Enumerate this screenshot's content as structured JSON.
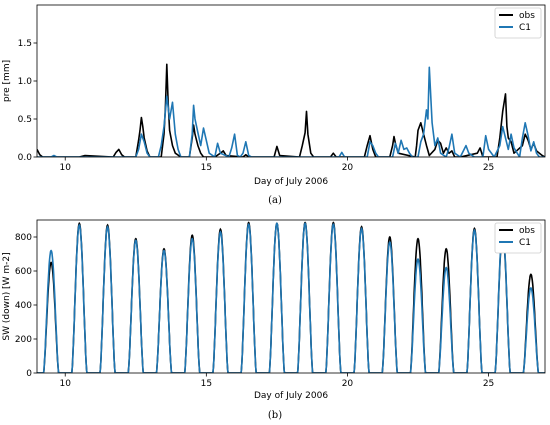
{
  "colors": {
    "obs": "#000000",
    "C1": "#1f77b4"
  },
  "chart_data": [
    {
      "id": "a",
      "type": "line",
      "caption": "(a)",
      "title": "",
      "xlabel": "Day of July 2006",
      "ylabel": "pre [mm]",
      "xlim": [
        9.0,
        27.0
      ],
      "ylim": [
        0.0,
        2.0
      ],
      "xticks": [
        10,
        15,
        20,
        25
      ],
      "xtick_labels": [
        "10",
        "15",
        "20",
        "25"
      ],
      "yticks": [
        0.0,
        0.5,
        1.0,
        1.5
      ],
      "ytick_labels": [
        "0.0",
        "0.5",
        "1.0",
        "1.5"
      ],
      "grid": false,
      "legend_position": "top-right",
      "legend": [
        "obs",
        "C1"
      ],
      "series": [
        {
          "name": "obs",
          "color": "#000000",
          "x": [
            9.0,
            9.1,
            9.2,
            9.3,
            10.5,
            10.7,
            11.7,
            11.8,
            11.9,
            12.0,
            12.1,
            12.5,
            12.6,
            12.65,
            12.7,
            12.75,
            12.8,
            12.9,
            13.0,
            13.4,
            13.5,
            13.55,
            13.6,
            13.65,
            13.7,
            13.8,
            13.9,
            14.1,
            14.4,
            14.5,
            14.55,
            14.6,
            14.7,
            14.8,
            14.9,
            15.0,
            15.3,
            15.5,
            15.6,
            15.7,
            16.3,
            16.4,
            16.5,
            17.4,
            17.5,
            17.6,
            18.3,
            18.4,
            18.5,
            18.55,
            18.6,
            18.7,
            18.8,
            19.4,
            19.5,
            19.6,
            20.6,
            20.7,
            20.8,
            20.9,
            21.0,
            21.5,
            21.6,
            21.65,
            21.7,
            21.8,
            22.4,
            22.45,
            22.5,
            22.6,
            22.7,
            22.8,
            22.9,
            23.1,
            23.2,
            23.3,
            23.4,
            23.5,
            23.6,
            23.7,
            23.8,
            24.0,
            24.6,
            24.7,
            24.8,
            25.3,
            25.4,
            25.5,
            25.6,
            25.65,
            25.7,
            25.8,
            25.9,
            26.2,
            26.3,
            26.4,
            26.5,
            26.6,
            26.7,
            26.8,
            26.9,
            27.0
          ],
          "y": [
            0.1,
            0.03,
            0.0,
            0.0,
            0.0,
            0.02,
            0.0,
            0.06,
            0.1,
            0.03,
            0.0,
            0.0,
            0.22,
            0.35,
            0.52,
            0.4,
            0.25,
            0.08,
            0.0,
            0.0,
            0.3,
            0.65,
            1.22,
            0.7,
            0.35,
            0.15,
            0.05,
            0.0,
            0.0,
            0.25,
            0.42,
            0.3,
            0.15,
            0.05,
            0.0,
            0.0,
            0.0,
            0.05,
            0.08,
            0.02,
            0.0,
            0.03,
            0.0,
            0.0,
            0.14,
            0.02,
            0.0,
            0.15,
            0.32,
            0.6,
            0.3,
            0.05,
            0.0,
            0.0,
            0.05,
            0.0,
            0.0,
            0.15,
            0.28,
            0.1,
            0.0,
            0.0,
            0.15,
            0.27,
            0.18,
            0.05,
            0.0,
            0.15,
            0.35,
            0.45,
            0.3,
            0.15,
            0.02,
            0.1,
            0.22,
            0.18,
            0.05,
            0.12,
            0.05,
            0.08,
            0.0,
            0.0,
            0.05,
            0.12,
            0.0,
            0.0,
            0.25,
            0.6,
            0.83,
            0.4,
            0.25,
            0.2,
            0.05,
            0.15,
            0.3,
            0.22,
            0.1,
            0.18,
            0.08,
            0.05,
            0.02,
            0.0
          ]
        },
        {
          "name": "C1",
          "color": "#1f77b4",
          "x": [
            9.0,
            9.5,
            9.6,
            9.7,
            9.8,
            12.5,
            12.6,
            12.7,
            12.8,
            12.9,
            13.0,
            13.3,
            13.4,
            13.5,
            13.6,
            13.65,
            13.7,
            13.8,
            13.9,
            14.0,
            14.1,
            14.4,
            14.5,
            14.55,
            14.6,
            14.7,
            14.8,
            14.9,
            15.0,
            15.1,
            15.3,
            15.4,
            15.5,
            15.8,
            15.9,
            16.0,
            16.1,
            16.2,
            16.3,
            16.4,
            16.5,
            16.6,
            19.7,
            19.8,
            19.9,
            20.7,
            20.8,
            20.9,
            21.0,
            21.1,
            21.6,
            21.7,
            21.8,
            21.9,
            22.0,
            22.1,
            22.2,
            22.3,
            22.5,
            22.6,
            22.7,
            22.8,
            22.85,
            22.9,
            23.0,
            23.1,
            23.2,
            23.3,
            23.5,
            23.6,
            23.7,
            23.8,
            24.0,
            24.2,
            24.3,
            24.5,
            24.8,
            24.9,
            25.0,
            25.2,
            25.4,
            25.5,
            25.6,
            25.7,
            25.8,
            25.9,
            26.1,
            26.2,
            26.3,
            26.4,
            26.5,
            26.6,
            26.7,
            26.8,
            27.0
          ],
          "y": [
            0.0,
            0.0,
            0.02,
            0.0,
            0.0,
            0.0,
            0.1,
            0.3,
            0.2,
            0.05,
            0.0,
            0.0,
            0.15,
            0.4,
            0.8,
            0.65,
            0.5,
            0.72,
            0.3,
            0.1,
            0.0,
            0.0,
            0.3,
            0.68,
            0.5,
            0.32,
            0.15,
            0.38,
            0.22,
            0.05,
            0.0,
            0.18,
            0.05,
            0.0,
            0.12,
            0.3,
            0.02,
            0.0,
            0.05,
            0.2,
            0.02,
            0.0,
            0.0,
            0.06,
            0.0,
            0.0,
            0.2,
            0.15,
            0.05,
            0.0,
            0.0,
            0.18,
            0.05,
            0.22,
            0.1,
            0.12,
            0.05,
            0.0,
            0.0,
            0.2,
            0.3,
            0.62,
            0.5,
            1.18,
            0.45,
            0.15,
            0.25,
            0.05,
            0.0,
            0.12,
            0.3,
            0.05,
            0.0,
            0.15,
            0.05,
            0.0,
            0.0,
            0.28,
            0.1,
            0.0,
            0.15,
            0.4,
            0.25,
            0.1,
            0.3,
            0.12,
            0.0,
            0.25,
            0.45,
            0.28,
            0.08,
            0.2,
            0.05,
            0.0,
            0.0
          ]
        }
      ]
    },
    {
      "id": "b",
      "type": "line",
      "caption": "(b)",
      "title": "",
      "xlabel": "Day of July 2006",
      "ylabel": "SW (down) [W m-2]",
      "xlim": [
        9.0,
        27.0
      ],
      "ylim": [
        0,
        900
      ],
      "xticks": [
        10,
        15,
        20,
        25
      ],
      "xtick_labels": [
        "10",
        "15",
        "20",
        "25"
      ],
      "yticks": [
        0,
        200,
        400,
        600,
        800
      ],
      "ytick_labels": [
        "0",
        "200",
        "400",
        "600",
        "800"
      ],
      "grid": false,
      "legend_position": "top-right",
      "legend": [
        "obs",
        "C1"
      ],
      "diurnal": {
        "description": "daily solar cycle, peak near local noon",
        "obs_daily_peak": [
          650,
          880,
          870,
          790,
          730,
          810,
          845,
          885,
          880,
          885,
          885,
          860,
          800,
          790,
          730,
          850,
          820,
          580
        ],
        "C1_daily_peak": [
          720,
          870,
          860,
          780,
          720,
          790,
          830,
          875,
          880,
          880,
          875,
          850,
          770,
          670,
          620,
          840,
          840,
          500
        ],
        "days": [
          9,
          10,
          11,
          12,
          13,
          14,
          15,
          16,
          17,
          18,
          19,
          20,
          21,
          22,
          23,
          24,
          25,
          26
        ]
      }
    }
  ]
}
